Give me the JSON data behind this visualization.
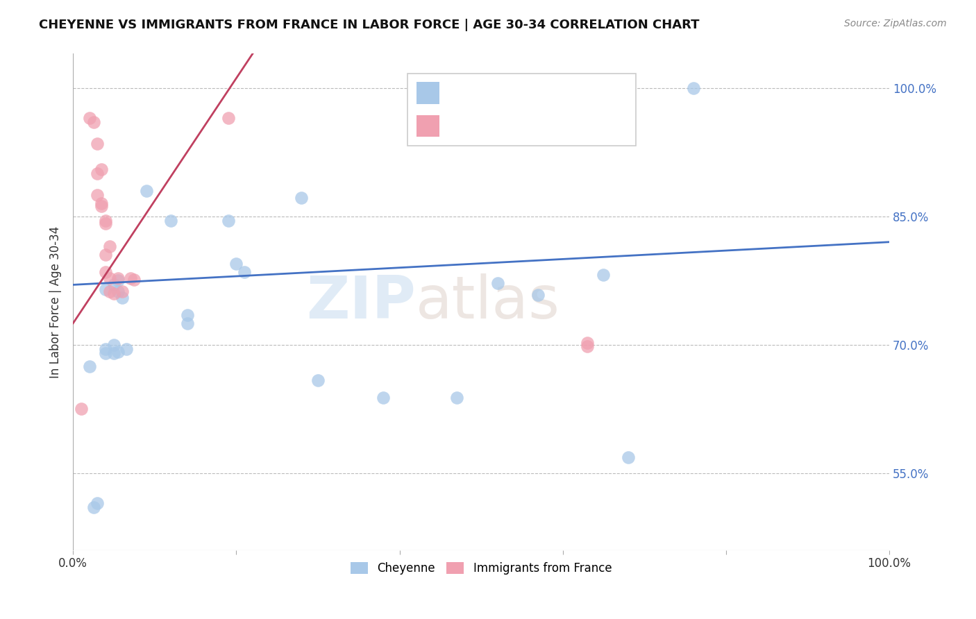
{
  "title": "CHEYENNE VS IMMIGRANTS FROM FRANCE IN LABOR FORCE | AGE 30-34 CORRELATION CHART",
  "source": "Source: ZipAtlas.com",
  "ylabel": "In Labor Force | Age 30-34",
  "watermark_zip": "ZIP",
  "watermark_atlas": "atlas",
  "xlim": [
    0.0,
    1.0
  ],
  "ylim": [
    0.46,
    1.04
  ],
  "x_ticks": [
    0.0,
    0.2,
    0.4,
    0.6,
    0.8,
    1.0
  ],
  "x_tick_labels": [
    "0.0%",
    "",
    "",
    "",
    "",
    "100.0%"
  ],
  "y_tick_labels_right": [
    "100.0%",
    "85.0%",
    "70.0%",
    "55.0%"
  ],
  "y_ticks_right": [
    1.0,
    0.85,
    0.7,
    0.55
  ],
  "blue_color": "#A8C8E8",
  "pink_color": "#F0A0B0",
  "blue_line_color": "#4472C4",
  "pink_line_color": "#C04060",
  "blue_scatter": [
    [
      0.02,
      0.675
    ],
    [
      0.025,
      0.51
    ],
    [
      0.03,
      0.515
    ],
    [
      0.04,
      0.765
    ],
    [
      0.04,
      0.695
    ],
    [
      0.04,
      0.69
    ],
    [
      0.05,
      0.77
    ],
    [
      0.05,
      0.7
    ],
    [
      0.05,
      0.69
    ],
    [
      0.055,
      0.762
    ],
    [
      0.055,
      0.692
    ],
    [
      0.055,
      0.775
    ],
    [
      0.06,
      0.755
    ],
    [
      0.065,
      0.695
    ],
    [
      0.09,
      0.88
    ],
    [
      0.12,
      0.845
    ],
    [
      0.14,
      0.735
    ],
    [
      0.14,
      0.725
    ],
    [
      0.19,
      0.845
    ],
    [
      0.2,
      0.795
    ],
    [
      0.21,
      0.785
    ],
    [
      0.28,
      0.872
    ],
    [
      0.3,
      0.658
    ],
    [
      0.38,
      0.638
    ],
    [
      0.47,
      0.638
    ],
    [
      0.52,
      0.772
    ],
    [
      0.57,
      0.758
    ],
    [
      0.65,
      0.782
    ],
    [
      0.68,
      0.568
    ],
    [
      0.76,
      1.0
    ]
  ],
  "pink_scatter": [
    [
      0.01,
      0.625
    ],
    [
      0.02,
      0.965
    ],
    [
      0.025,
      0.96
    ],
    [
      0.03,
      0.935
    ],
    [
      0.03,
      0.9
    ],
    [
      0.03,
      0.875
    ],
    [
      0.035,
      0.905
    ],
    [
      0.035,
      0.865
    ],
    [
      0.035,
      0.862
    ],
    [
      0.04,
      0.845
    ],
    [
      0.04,
      0.842
    ],
    [
      0.04,
      0.805
    ],
    [
      0.04,
      0.785
    ],
    [
      0.045,
      0.815
    ],
    [
      0.045,
      0.778
    ],
    [
      0.045,
      0.762
    ],
    [
      0.05,
      0.76
    ],
    [
      0.055,
      0.778
    ],
    [
      0.06,
      0.762
    ],
    [
      0.07,
      0.778
    ],
    [
      0.075,
      0.776
    ],
    [
      0.19,
      0.965
    ],
    [
      0.63,
      0.698
    ],
    [
      0.63,
      0.702
    ]
  ],
  "blue_trendline_x": [
    0.0,
    1.0
  ],
  "blue_trendline_y": [
    0.77,
    0.82
  ],
  "pink_trendline_x": [
    0.0,
    0.22
  ],
  "pink_trendline_y": [
    0.725,
    1.04
  ]
}
